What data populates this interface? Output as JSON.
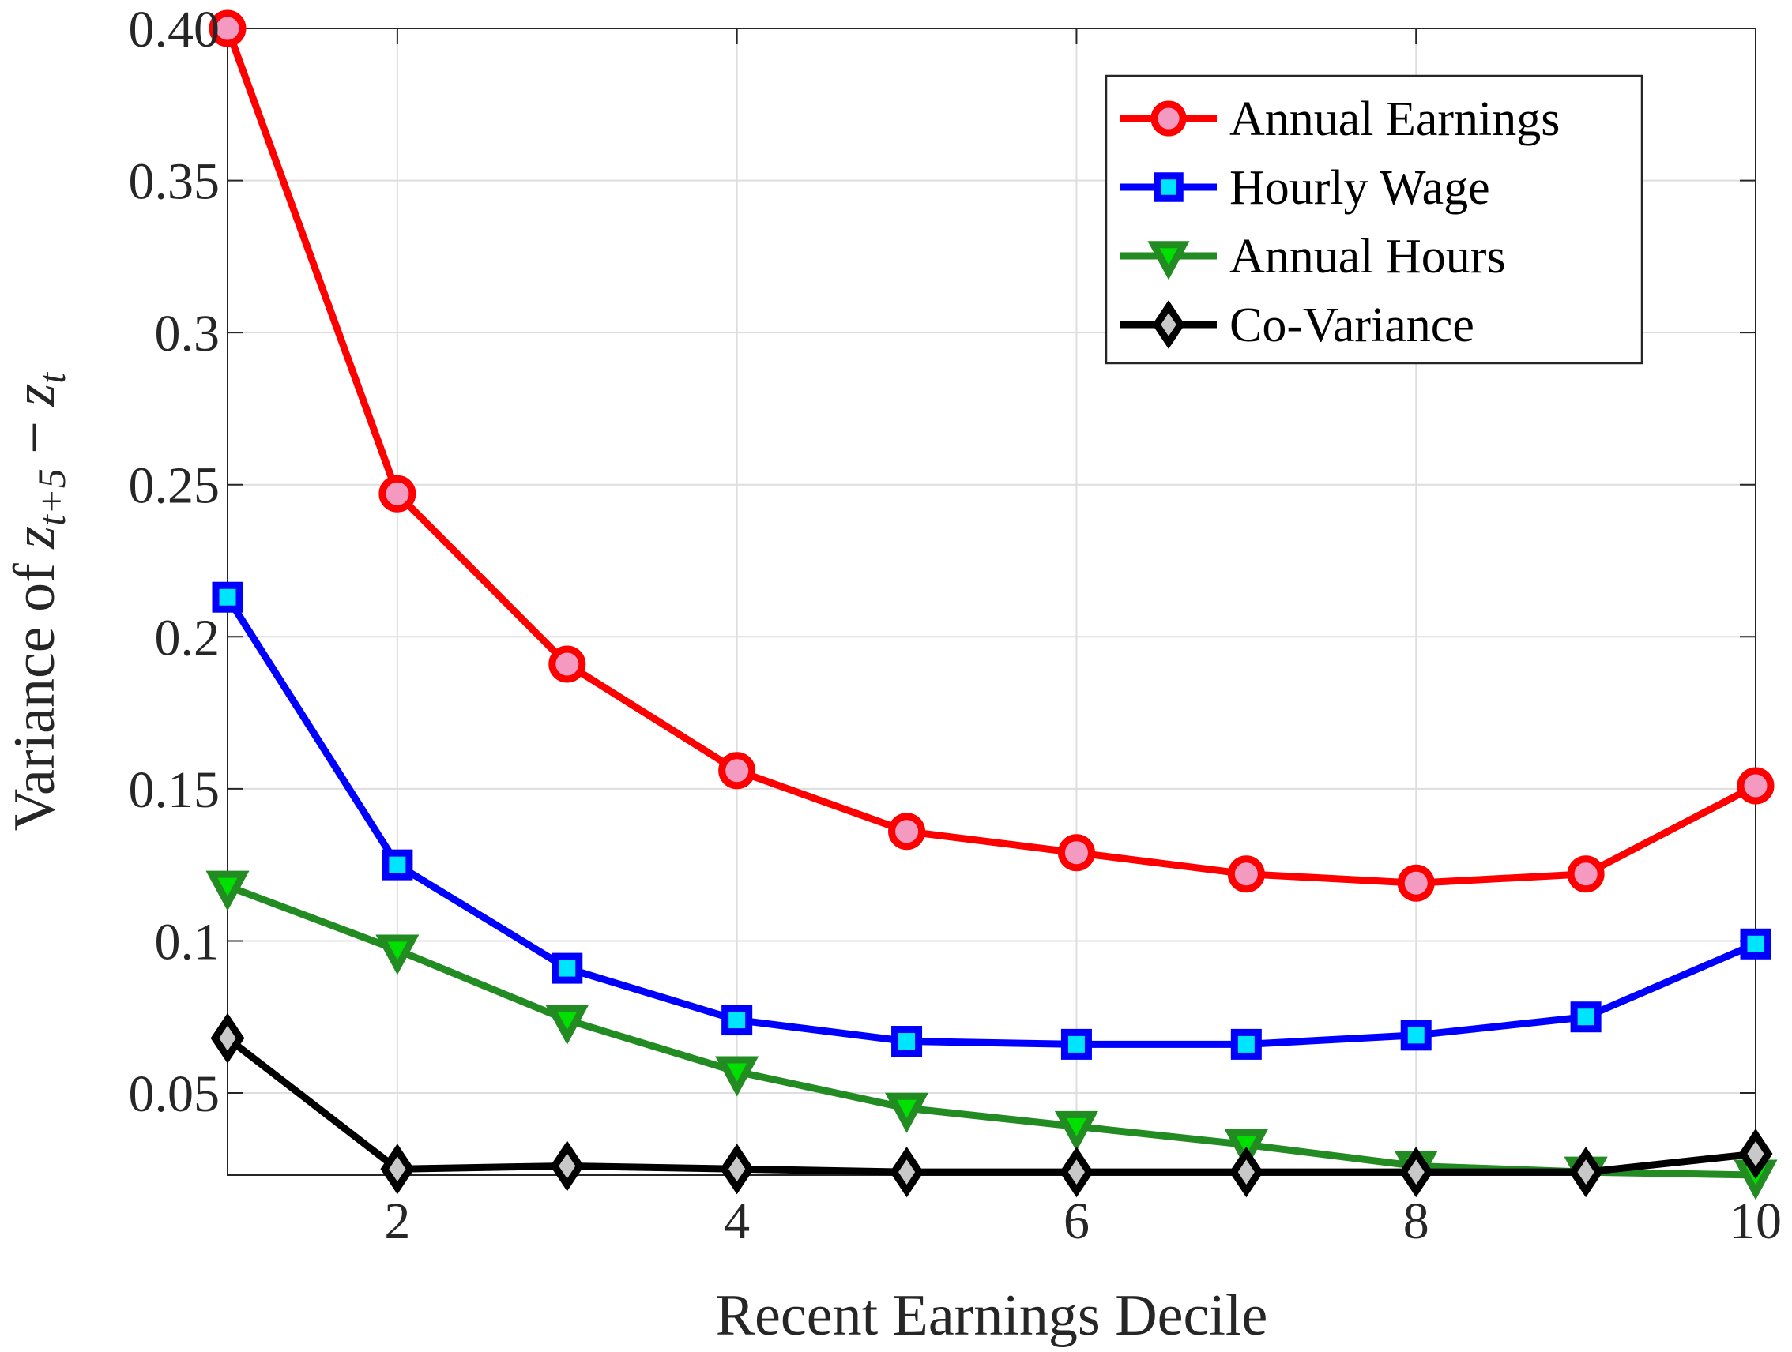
{
  "chart_data": {
    "type": "line",
    "x": [
      1,
      2,
      3,
      4,
      5,
      6,
      7,
      8,
      9,
      10
    ],
    "xlabel": "Recent Earnings Decile",
    "ylabel": {
      "prefix": "Variance of ",
      "var1": "z",
      "sub1": "t+5",
      "operator": " − ",
      "var2": "z",
      "sub2": "t"
    },
    "xlim": [
      1,
      10
    ],
    "ylim": [
      0.023,
      0.4
    ],
    "xticks": [
      2,
      4,
      6,
      8,
      10
    ],
    "xtick_labels": [
      "2",
      "4",
      "6",
      "8",
      "10"
    ],
    "yticks": [
      0.05,
      0.1,
      0.15,
      0.2,
      0.25,
      0.3,
      0.35,
      0.4
    ],
    "ytick_labels": [
      "0.05",
      "0.1",
      "0.15",
      "0.2",
      "0.25",
      "0.3",
      "0.35",
      "0.40"
    ],
    "grid": true,
    "legend_position": "top-right",
    "series": [
      {
        "name": "Annual Earnings",
        "color": "#ff0000",
        "marker": "circle",
        "marker_fill": "#f49ac1",
        "values": [
          0.4,
          0.247,
          0.191,
          0.156,
          0.136,
          0.129,
          0.122,
          0.119,
          0.122,
          0.151
        ]
      },
      {
        "name": "Hourly Wage",
        "color": "#0000ff",
        "marker": "square",
        "marker_fill": "#00e5ff",
        "values": [
          0.213,
          0.125,
          0.091,
          0.074,
          0.067,
          0.066,
          0.066,
          0.069,
          0.075,
          0.099
        ]
      },
      {
        "name": "Annual Hours",
        "color": "#228b22",
        "marker": "triangle-down",
        "marker_fill": "#00e000",
        "values": [
          0.118,
          0.097,
          0.074,
          0.057,
          0.045,
          0.039,
          0.033,
          0.026,
          0.024,
          0.023
        ]
      },
      {
        "name": "Co-Variance",
        "color": "#000000",
        "marker": "diamond",
        "marker_fill": "#c8c8c8",
        "values": [
          0.068,
          0.025,
          0.026,
          0.025,
          0.024,
          0.024,
          0.024,
          0.024,
          0.024,
          0.03
        ]
      }
    ]
  }
}
